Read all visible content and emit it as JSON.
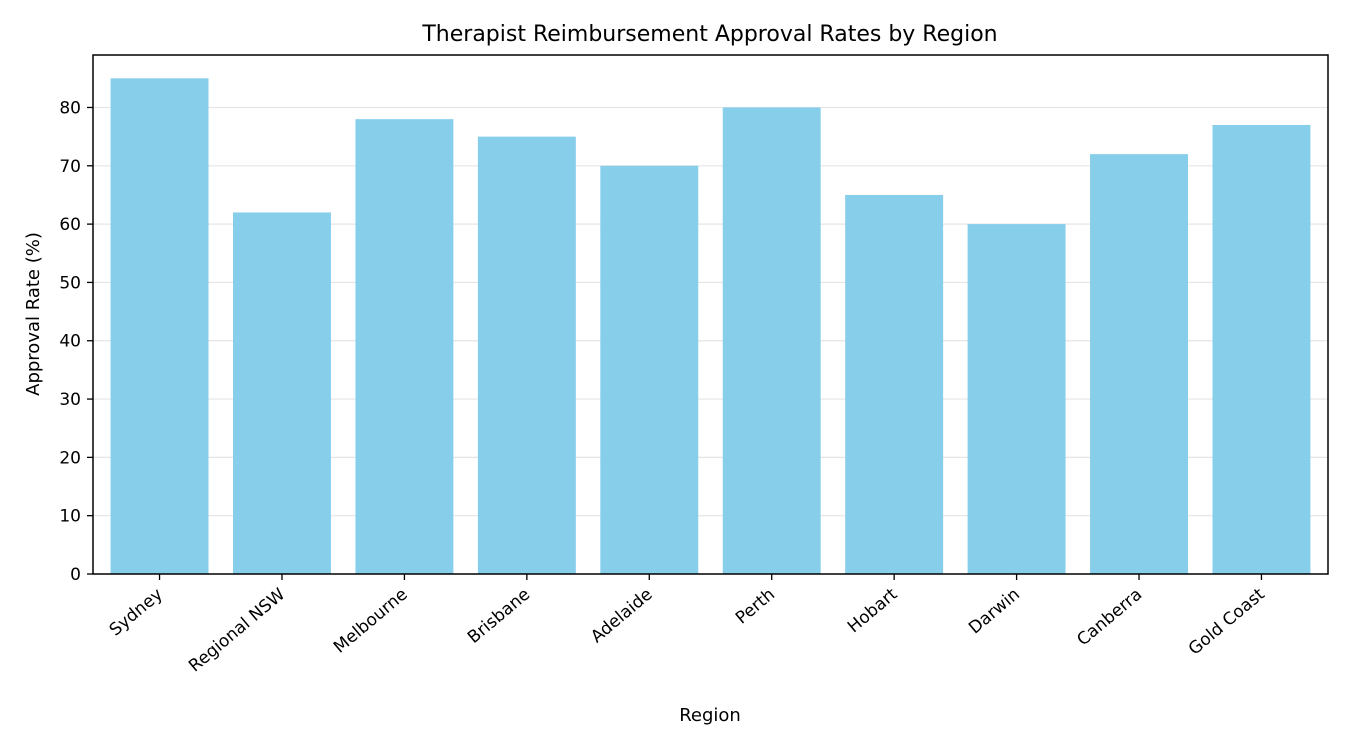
{
  "chart_data": {
    "type": "bar",
    "title": "Therapist Reimbursement Approval Rates by Region",
    "xlabel": "Region",
    "ylabel": "Approval Rate (%)",
    "categories": [
      "Sydney",
      "Regional NSW",
      "Melbourne",
      "Brisbane",
      "Adelaide",
      "Perth",
      "Hobart",
      "Darwin",
      "Canberra",
      "Gold Coast"
    ],
    "values": [
      85,
      62,
      78,
      75,
      70,
      80,
      65,
      60,
      72,
      77
    ],
    "ylim": [
      0,
      89
    ],
    "yticks": [
      0,
      10,
      20,
      30,
      40,
      50,
      60,
      70,
      80
    ],
    "grid": "horizontal",
    "bar_color": "#87CEEB",
    "grid_color": "#e5e5e5",
    "axis_color": "#000000"
  }
}
